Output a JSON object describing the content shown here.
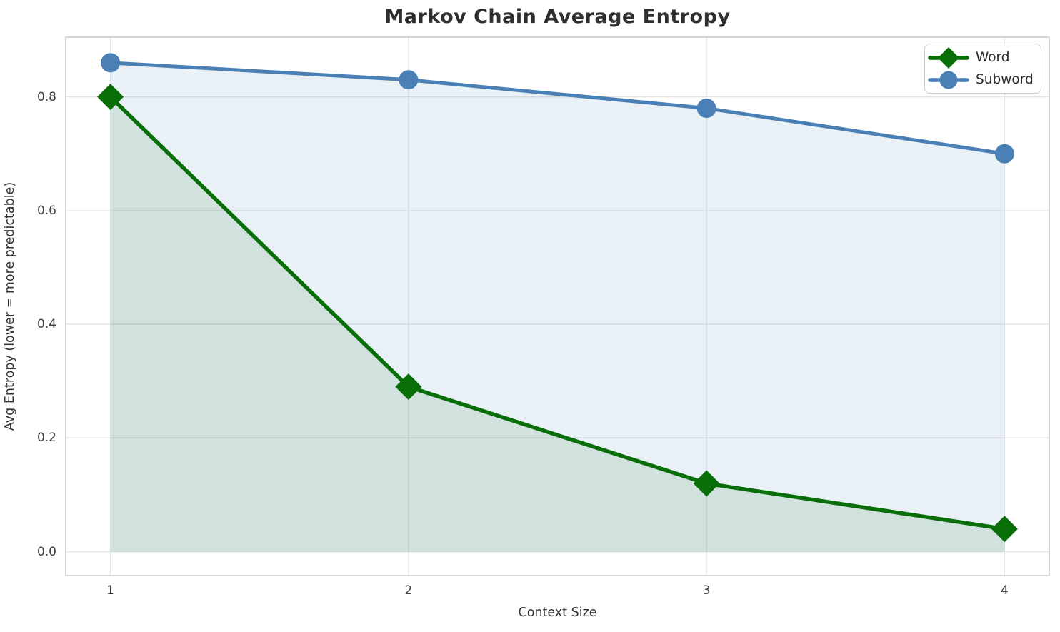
{
  "chart_data": {
    "type": "line",
    "title": "Markov Chain Average Entropy",
    "xlabel": "Context Size",
    "ylabel": "Avg Entropy (lower = more predictable)",
    "x": [
      1,
      2,
      3,
      4
    ],
    "xlim": [
      0.85,
      4.15
    ],
    "ylim": [
      -0.042,
      0.905
    ],
    "xticks": {
      "positions": [
        1,
        2,
        3,
        4
      ],
      "labels": [
        "1",
        "2",
        "3",
        "4"
      ]
    },
    "yticks": {
      "positions": [
        0.0,
        0.2,
        0.4,
        0.6,
        0.8
      ],
      "labels": [
        "0.0",
        "0.2",
        "0.4",
        "0.6",
        "0.8"
      ]
    },
    "grid": true,
    "fill_baseline": 0.0,
    "legend": {
      "position": "upper right"
    },
    "series": [
      {
        "name": "Word",
        "marker": "diamond",
        "color": "#086e08",
        "fill_color": "rgba(0,100,0,0.10)",
        "values": [
          0.8,
          0.29,
          0.12,
          0.04
        ]
      },
      {
        "name": "Subword",
        "marker": "circle",
        "color": "#4a80b5",
        "fill_color": "rgba(70,130,180,0.12)",
        "values": [
          0.86,
          0.83,
          0.78,
          0.7
        ]
      }
    ],
    "colors": {
      "grid_line": "#e3e3e3",
      "spine": "#cccccc",
      "title_text": "#2e2e2e",
      "tick_text": "#3d3d3d",
      "axis_label_text": "#333333"
    }
  }
}
